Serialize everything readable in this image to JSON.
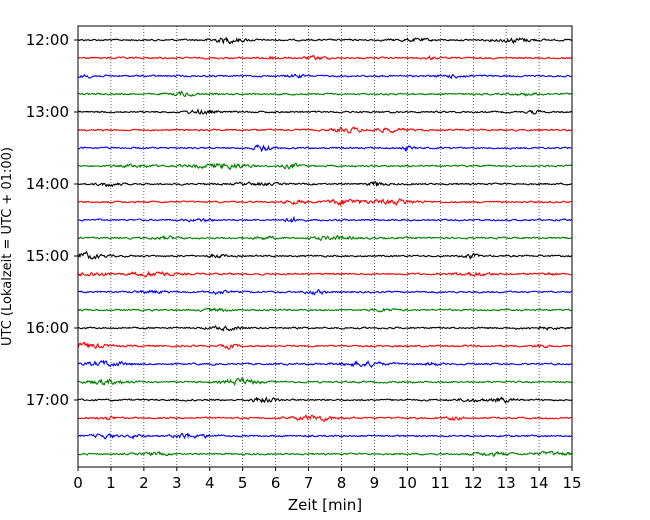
{
  "chart_data": {
    "type": "line",
    "title": "",
    "xlabel": "Zeit  [min]",
    "ylabel": "UTC (Lokalzeit = UTC + 01:00)",
    "xlim": [
      0,
      15
    ],
    "x_ticks": [
      "0",
      "1",
      "2",
      "3",
      "4",
      "5",
      "6",
      "7",
      "8",
      "9",
      "10",
      "11",
      "12",
      "13",
      "14",
      "15"
    ],
    "y_ticks": [
      "12:00",
      "13:00",
      "14:00",
      "15:00",
      "16:00",
      "17:00"
    ],
    "grid": "vertical dotted",
    "trace_interval_minutes": 15,
    "trace_count": 24,
    "trace_start": "12:00",
    "trace_colors": [
      "#000000",
      "#ff0000",
      "#0000ff",
      "#008000"
    ]
  }
}
